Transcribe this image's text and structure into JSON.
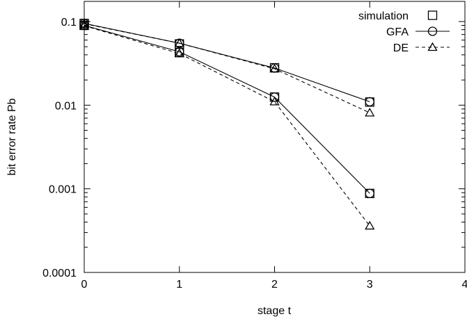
{
  "chart_data": {
    "type": "line",
    "title": "",
    "xlabel": "stage t",
    "ylabel": "bit error rate Pb",
    "xlim": [
      0,
      4
    ],
    "ylim": [
      0.0001,
      0.1
    ],
    "y_scale": "log",
    "grid": false,
    "legend_position": "top-right",
    "x_ticks": [
      {
        "value": 0,
        "label": "0"
      },
      {
        "value": 1,
        "label": "1"
      },
      {
        "value": 2,
        "label": "2"
      },
      {
        "value": 3,
        "label": "3"
      },
      {
        "value": 4,
        "label": "4"
      }
    ],
    "y_ticks": [
      {
        "value": 0.0001,
        "label": "0.0001"
      },
      {
        "value": 0.001,
        "label": "0.001"
      },
      {
        "value": 0.01,
        "label": "0.01"
      },
      {
        "value": 0.1,
        "label": "0.1"
      }
    ],
    "series": [
      {
        "name": "simulation",
        "marker": "square",
        "line": "none",
        "points": [
          [
            0,
            0.095
          ],
          [
            1,
            0.054
          ],
          [
            2,
            0.028
          ],
          [
            3,
            0.0109
          ]
        ]
      },
      {
        "name": "simulation",
        "marker": "square",
        "line": "none",
        "legend": false,
        "points": [
          [
            0,
            0.09
          ],
          [
            1,
            0.0425
          ],
          [
            2,
            0.0125
          ],
          [
            3,
            0.00088
          ]
        ]
      },
      {
        "name": "GFA",
        "marker": "circle",
        "line": "solid",
        "points": [
          [
            0,
            0.095
          ],
          [
            1,
            0.055
          ],
          [
            2,
            0.0278
          ],
          [
            3,
            0.011
          ]
        ]
      },
      {
        "name": "GFA",
        "marker": "circle",
        "line": "solid",
        "legend": false,
        "points": [
          [
            0,
            0.09
          ],
          [
            1,
            0.0435
          ],
          [
            2,
            0.0125
          ],
          [
            3,
            0.00088
          ]
        ]
      },
      {
        "name": "DE",
        "marker": "triangle",
        "line": "dashed",
        "points": [
          [
            0,
            0.094
          ],
          [
            1,
            0.055
          ],
          [
            2,
            0.0272
          ],
          [
            3,
            0.0081
          ]
        ]
      },
      {
        "name": "DE",
        "marker": "triangle",
        "line": "dashed",
        "legend": false,
        "points": [
          [
            0,
            0.089
          ],
          [
            1,
            0.0415
          ],
          [
            2,
            0.011
          ],
          [
            3,
            0.00036
          ]
        ]
      }
    ]
  }
}
